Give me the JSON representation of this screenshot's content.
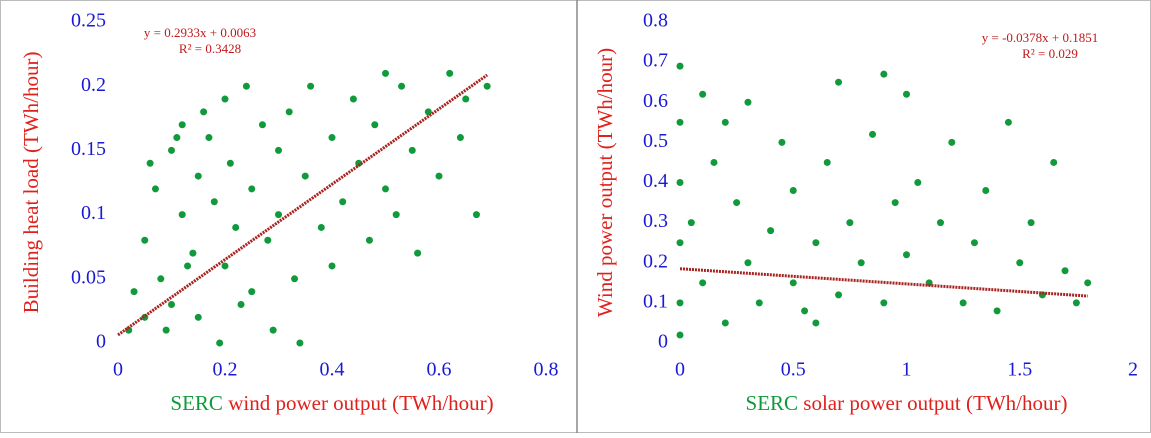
{
  "chart_data": [
    {
      "type": "scatter",
      "xlabel": [
        "SERC",
        "wind power output (TWh/hour)"
      ],
      "xlabel_colors": [
        "#109a3c",
        "#e0201b"
      ],
      "ylabel": "Building heat load (TWh/hour)",
      "ylabel_color": "#e0201b",
      "annotation": [
        "y = 0.2933x + 0.0063",
        "R² = 0.3428"
      ],
      "annotation_color": "#c0191b",
      "tick_color": "#1a1ad6",
      "color": "#109a3c",
      "x": [
        0.02,
        0.03,
        0.05,
        0.05,
        0.07,
        0.08,
        0.1,
        0.1,
        0.12,
        0.12,
        0.14,
        0.15,
        0.15,
        0.17,
        0.18,
        0.2,
        0.2,
        0.21,
        0.22,
        0.24,
        0.25,
        0.25,
        0.27,
        0.28,
        0.3,
        0.3,
        0.32,
        0.33,
        0.35,
        0.36,
        0.38,
        0.4,
        0.4,
        0.42,
        0.44,
        0.45,
        0.47,
        0.48,
        0.5,
        0.5,
        0.52,
        0.53,
        0.55,
        0.56,
        0.58,
        0.6,
        0.62,
        0.64,
        0.65,
        0.67,
        0.69,
        0.06,
        0.09,
        0.13,
        0.19,
        0.23,
        0.29,
        0.34,
        0.11,
        0.16
      ],
      "values": [
        0.01,
        0.04,
        0.02,
        0.08,
        0.12,
        0.05,
        0.15,
        0.03,
        0.1,
        0.17,
        0.07,
        0.13,
        0.02,
        0.16,
        0.11,
        0.19,
        0.06,
        0.14,
        0.09,
        0.2,
        0.04,
        0.12,
        0.17,
        0.08,
        0.15,
        0.1,
        0.18,
        0.05,
        0.13,
        0.2,
        0.09,
        0.16,
        0.06,
        0.11,
        0.19,
        0.14,
        0.08,
        0.17,
        0.21,
        0.12,
        0.1,
        0.2,
        0.15,
        0.07,
        0.18,
        0.13,
        0.21,
        0.16,
        0.19,
        0.1,
        0.2,
        0.14,
        0.01,
        0.06,
        0.0,
        0.03,
        0.01,
        0.0,
        0.16,
        0.18
      ],
      "trendline": {
        "x": [
          0,
          0.69
        ],
        "values": [
          0.0063,
          0.2087
        ],
        "color": "#a8231f"
      },
      "xlim": [
        0,
        0.8
      ],
      "xticks": [
        0,
        0.2,
        0.4,
        0.6,
        0.8
      ],
      "ylim": [
        0,
        0.25
      ],
      "yticks": [
        0,
        0.05,
        0.1,
        0.15,
        0.2,
        0.25
      ]
    },
    {
      "type": "scatter",
      "xlabel": [
        "SERC",
        "solar power output (TWh/hour)"
      ],
      "xlabel_colors": [
        "#109a3c",
        "#e0201b"
      ],
      "ylabel": "Wind power output (TWh/hour)",
      "ylabel_color": "#e0201b",
      "annotation": [
        "y = -0.0378x + 0.1851",
        "R² = 0.029"
      ],
      "annotation_color": "#c0191b",
      "tick_color": "#1a1ad6",
      "color": "#109a3c",
      "x": [
        0,
        0,
        0,
        0,
        0,
        0,
        0.05,
        0.1,
        0.1,
        0.15,
        0.2,
        0.25,
        0.3,
        0.3,
        0.35,
        0.4,
        0.45,
        0.5,
        0.5,
        0.55,
        0.6,
        0.65,
        0.7,
        0.7,
        0.75,
        0.8,
        0.85,
        0.9,
        0.9,
        0.95,
        1,
        1,
        1.05,
        1.1,
        1.15,
        1.2,
        1.25,
        1.3,
        1.35,
        1.4,
        1.45,
        1.5,
        1.55,
        1.6,
        1.65,
        1.7,
        1.75,
        1.8,
        0.2,
        0.6
      ],
      "values": [
        0.69,
        0.55,
        0.4,
        0.25,
        0.1,
        0.02,
        0.3,
        0.62,
        0.15,
        0.45,
        0.05,
        0.35,
        0.2,
        0.6,
        0.1,
        0.28,
        0.5,
        0.15,
        0.38,
        0.08,
        0.25,
        0.45,
        0.65,
        0.12,
        0.3,
        0.2,
        0.52,
        0.67,
        0.1,
        0.35,
        0.62,
        0.22,
        0.4,
        0.15,
        0.3,
        0.5,
        0.1,
        0.25,
        0.38,
        0.08,
        0.55,
        0.2,
        0.3,
        0.12,
        0.45,
        0.18,
        0.1,
        0.15,
        0.55,
        0.05
      ],
      "trendline": {
        "x": [
          0,
          1.8
        ],
        "values": [
          0.1851,
          0.117
        ],
        "color": "#a8231f"
      },
      "xlim": [
        0,
        2
      ],
      "xticks": [
        0,
        0.5,
        1,
        1.5,
        2
      ],
      "ylim": [
        0,
        0.8
      ],
      "yticks": [
        0,
        0.1,
        0.2,
        0.3,
        0.4,
        0.5,
        0.6,
        0.7,
        0.8
      ]
    }
  ]
}
